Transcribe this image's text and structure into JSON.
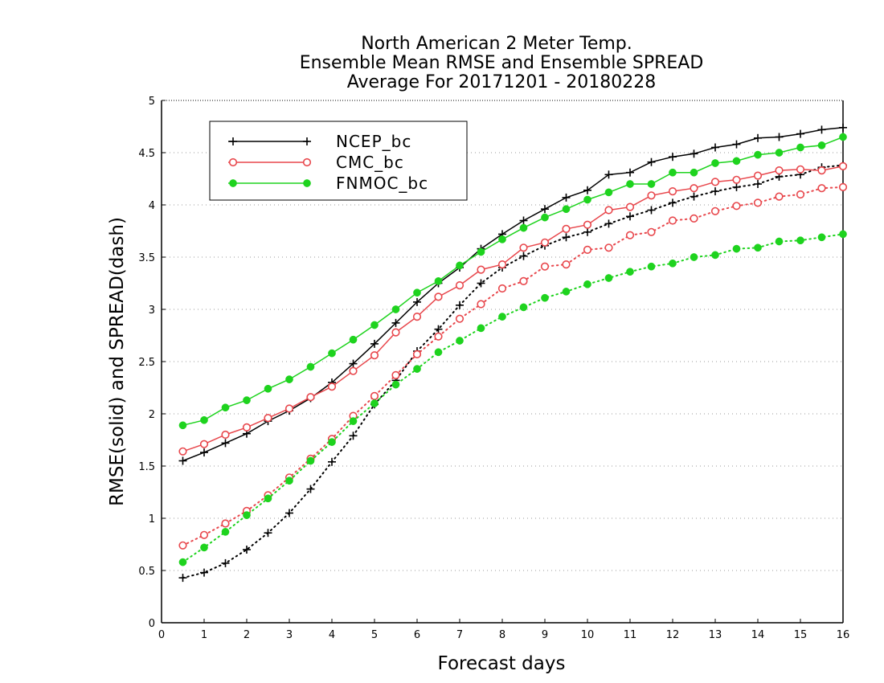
{
  "chart_data": {
    "type": "line",
    "title_lines": [
      "North American 2 Meter Temp.",
      "Ensemble Mean RMSE and Ensemble SPREAD",
      "Average For 20171201 - 20180228"
    ],
    "xlabel": "Forecast days",
    "ylabel": "RMSE(solid) and SPREAD(dash)",
    "xlim": [
      0,
      16
    ],
    "ylim": [
      0,
      5
    ],
    "xticks": [
      "0",
      "1",
      "2",
      "3",
      "4",
      "5",
      "6",
      "7",
      "8",
      "9",
      "10",
      "11",
      "12",
      "13",
      "14",
      "15",
      "16"
    ],
    "yticks": [
      "0",
      "0.5",
      "1",
      "1.5",
      "2",
      "2.5",
      "3",
      "3.5",
      "4",
      "4.5",
      "5"
    ],
    "grid": "horizontal-dotted",
    "legend_position": "top-left",
    "x": [
      0.5,
      1,
      1.5,
      2,
      2.5,
      3,
      3.5,
      4,
      4.5,
      5,
      5.5,
      6,
      6.5,
      7,
      7.5,
      8,
      8.5,
      9,
      9.5,
      10,
      10.5,
      11,
      11.5,
      12,
      12.5,
      13,
      13.5,
      14,
      14.5,
      15,
      15.5,
      16
    ],
    "series": [
      {
        "name": "NCEP_bc",
        "color": "#000000",
        "marker": "plus",
        "rmse": [
          1.55,
          1.63,
          1.72,
          1.81,
          1.93,
          2.03,
          2.15,
          2.3,
          2.48,
          2.67,
          2.87,
          3.07,
          3.25,
          3.4,
          3.58,
          3.72,
          3.85,
          3.96,
          4.07,
          4.14,
          4.29,
          4.31,
          4.41,
          4.46,
          4.49,
          4.55,
          4.58,
          4.64,
          4.65,
          4.68,
          4.72,
          4.74
        ],
        "spread": [
          0.43,
          0.48,
          0.57,
          0.7,
          0.86,
          1.05,
          1.28,
          1.54,
          1.79,
          2.09,
          2.32,
          2.6,
          2.81,
          3.04,
          3.25,
          3.4,
          3.51,
          3.61,
          3.69,
          3.74,
          3.82,
          3.89,
          3.95,
          4.02,
          4.08,
          4.13,
          4.17,
          4.2,
          4.27,
          4.29,
          4.36,
          4.38
        ]
      },
      {
        "name": "CMC_bc",
        "color": "#e8474c",
        "marker": "open-circle",
        "rmse": [
          1.64,
          1.71,
          1.8,
          1.87,
          1.96,
          2.05,
          2.16,
          2.26,
          2.41,
          2.56,
          2.78,
          2.93,
          3.12,
          3.23,
          3.38,
          3.43,
          3.59,
          3.64,
          3.77,
          3.81,
          3.95,
          3.98,
          4.09,
          4.13,
          4.16,
          4.22,
          4.24,
          4.28,
          4.33,
          4.34,
          4.33,
          4.37
        ],
        "spread": [
          0.74,
          0.84,
          0.95,
          1.07,
          1.22,
          1.39,
          1.57,
          1.76,
          1.98,
          2.17,
          2.37,
          2.57,
          2.74,
          2.91,
          3.05,
          3.2,
          3.27,
          3.41,
          3.43,
          3.57,
          3.59,
          3.71,
          3.74,
          3.85,
          3.87,
          3.94,
          3.99,
          4.02,
          4.08,
          4.1,
          4.16,
          4.17
        ]
      },
      {
        "name": "FNMOC_bc",
        "color": "#1ed31e",
        "marker": "filled-circle",
        "rmse": [
          1.89,
          1.94,
          2.06,
          2.13,
          2.24,
          2.33,
          2.45,
          2.58,
          2.71,
          2.85,
          3.0,
          3.16,
          3.27,
          3.42,
          3.55,
          3.67,
          3.78,
          3.88,
          3.96,
          4.05,
          4.12,
          4.2,
          4.2,
          4.31,
          4.31,
          4.4,
          4.42,
          4.48,
          4.5,
          4.55,
          4.57,
          4.65
        ],
        "spread": [
          0.58,
          0.72,
          0.87,
          1.03,
          1.19,
          1.36,
          1.55,
          1.73,
          1.93,
          2.1,
          2.28,
          2.43,
          2.59,
          2.7,
          2.82,
          2.93,
          3.02,
          3.11,
          3.17,
          3.24,
          3.3,
          3.36,
          3.41,
          3.44,
          3.5,
          3.52,
          3.58,
          3.59,
          3.65,
          3.66,
          3.69,
          3.72
        ]
      }
    ]
  }
}
